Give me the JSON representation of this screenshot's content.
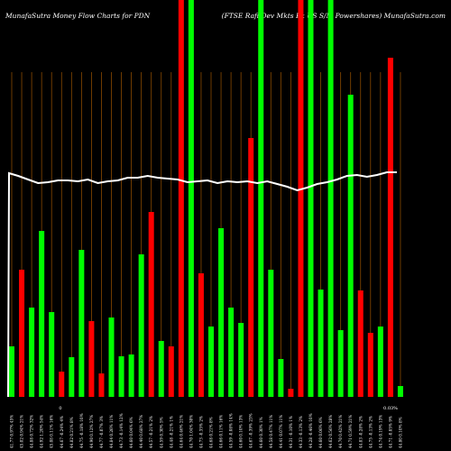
{
  "chart_data": {
    "type": "bar",
    "title_left": "MunafaSutra  Money Flow  Charts for PDN",
    "title_right": "(FTSE Rafi  Dev   Mkts Ex US S/M Powershares) MunafaSutra.com",
    "colors": {
      "background": "#000000",
      "up": "#00ff00",
      "down": "#ff0000",
      "line": "#ffffff",
      "grid": "#8a4a00",
      "text": "#ffffff"
    },
    "ylim": [
      0,
      440
    ],
    "series": [
      {
        "type": "bar",
        "values": [
          56,
          141,
          99,
          184,
          94,
          28,
          44,
          163,
          84,
          26,
          88,
          45,
          47,
          158,
          205,
          62,
          56,
          440,
          440,
          137,
          78,
          187,
          99,
          82,
          287,
          440,
          141,
          42,
          9,
          440,
          440,
          119,
          440,
          74,
          335,
          118,
          71,
          78,
          376,
          12
        ],
        "direction": [
          "up",
          "down",
          "up",
          "up",
          "up",
          "down",
          "up",
          "up",
          "down",
          "down",
          "up",
          "up",
          "up",
          "up",
          "down",
          "up",
          "down",
          "down",
          "up",
          "down",
          "up",
          "up",
          "up",
          "up",
          "down",
          "up",
          "up",
          "up",
          "down",
          "down",
          "up",
          "up",
          "up",
          "up",
          "up",
          "down",
          "down",
          "up",
          "down",
          "up"
        ]
      },
      {
        "type": "line",
        "values": [
          248,
          245,
          241,
          237,
          238,
          240,
          240,
          239,
          241,
          237,
          239,
          240,
          243,
          243,
          245,
          243,
          242,
          241,
          238,
          239,
          240,
          237,
          239,
          238,
          239,
          237,
          239,
          236,
          233,
          229,
          232,
          236,
          238,
          241,
          245,
          246,
          244,
          246,
          249,
          249
        ]
      }
    ],
    "categories": [
      "41.77 0.97% 45%",
      "45.02 0.94% 21%",
      "44.88 0.72% 32%",
      "44.92 1.20% 54%",
      "45.08 0.11% 16%",
      "44.67 -0.24% 4%",
      "44.82 0.21% 8%",
      "44.75 -0.18% 10%",
      "44.90 0.12% 27%",
      "44.77 -0.07% 3%",
      "44.84 0.26% 11%",
      "44.73 -0.14% 12%",
      "44.60 0.04% 6%",
      "44.40 0.68% 27%",
      "44.57 -0.21% 2%",
      "44.59 0.30% 5%",
      "44.48 -0.21% 1%",
      "44.64 0.46% 21%",
      "44.70 1.04% 30%",
      "44.73 -0.35% 2%",
      "44.68 0.21% 8%",
      "44.66 0.11% 16%",
      "44.59 -0.08% 14%",
      "44.60 0.10% 13%",
      "44.67 -0.39% 23%",
      "44.60 0.30% 1%",
      "44.58 0.47% 11%",
      "44.41 0.07% 11%",
      "44.31 -0.10% 1%",
      "44.33 -0.13% 2%",
      "44.28 -0.46% 10%",
      "44.60 0.06% 6%",
      "44.62 0.56% 28%",
      "44.70 0.42% 21%",
      "44.71 0.59% 21%",
      "44.83 -0.28% 2%",
      "44.75 -0.13% 2%",
      "44.74 0.19% 13%",
      "44.71 -0.05% 9%",
      "44.80 0.10% 8%"
    ],
    "x_marks": [
      "0",
      "0.03%"
    ]
  }
}
